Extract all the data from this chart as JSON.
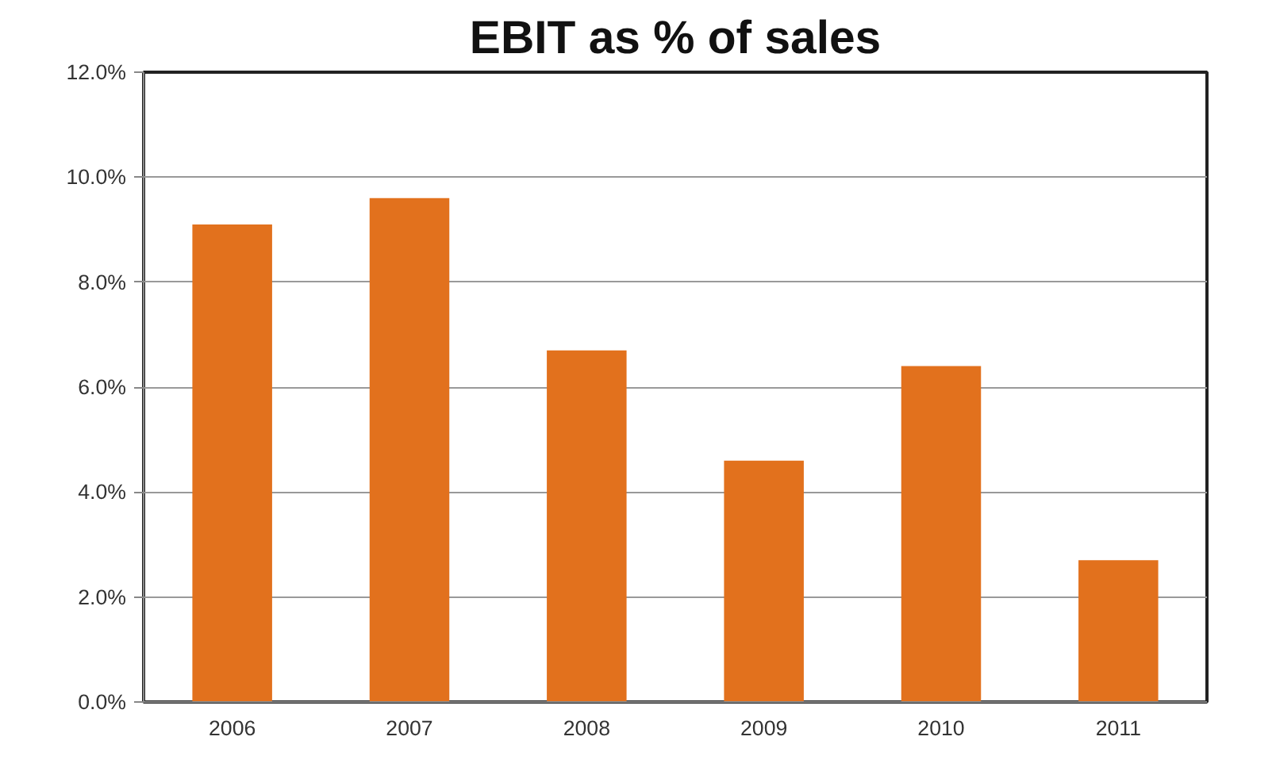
{
  "chart_data": {
    "type": "bar",
    "title": "EBIT as % of sales",
    "categories": [
      "2006",
      "2007",
      "2008",
      "2009",
      "2010",
      "2011"
    ],
    "values": [
      9.1,
      9.6,
      6.7,
      4.6,
      6.4,
      2.7
    ],
    "color": "#e2711d",
    "ylim": [
      0,
      12
    ],
    "yticks": [
      {
        "value": 0,
        "label": "0.0%"
      },
      {
        "value": 2,
        "label": "2.0%"
      },
      {
        "value": 4,
        "label": "4.0%"
      },
      {
        "value": 6,
        "label": "6.0%"
      },
      {
        "value": 8,
        "label": "8.0%"
      },
      {
        "value": 10,
        "label": "10.0%"
      },
      {
        "value": 12,
        "label": "12.0%"
      }
    ],
    "grid": "y"
  }
}
